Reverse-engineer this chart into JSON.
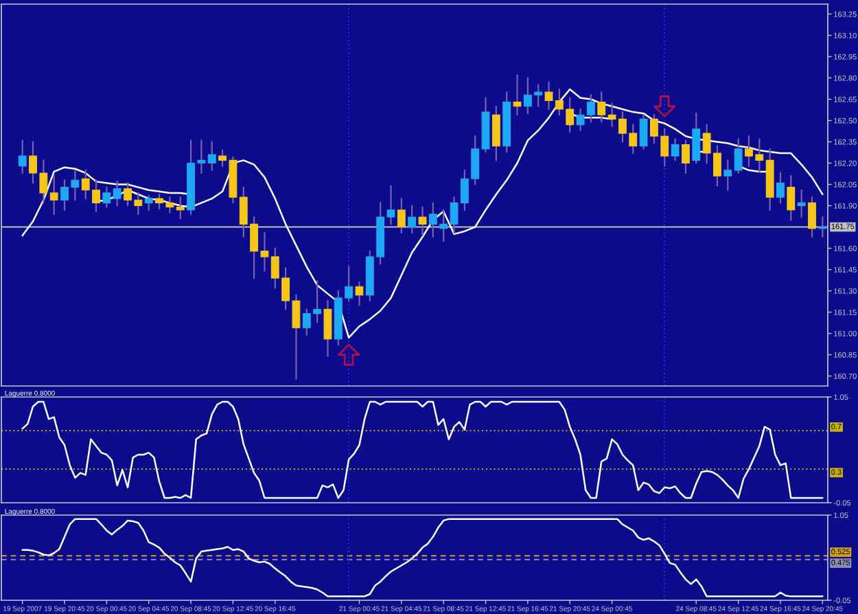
{
  "chart_data": [
    {
      "type": "candlestick",
      "categories": [
        null,
        null,
        null,
        null,
        null,
        null,
        null,
        null,
        null,
        null,
        null,
        null,
        null,
        null,
        null,
        null,
        null,
        null,
        null,
        null,
        null,
        null,
        null,
        null,
        null,
        null,
        null,
        null,
        null,
        null,
        null,
        null,
        null,
        null,
        null,
        null,
        null,
        null,
        null,
        null,
        null,
        null,
        null,
        null,
        null,
        null,
        null,
        null,
        null,
        null,
        null,
        null,
        null,
        null,
        null,
        null,
        null,
        null,
        null,
        null,
        null,
        null,
        null,
        null,
        null,
        null,
        null,
        null,
        null,
        null,
        null,
        null,
        null,
        null,
        null,
        null,
        null
      ],
      "series": [
        {
          "type": "line",
          "color": "#ffffff",
          "values": [
            161.69,
            161.79,
            161.94,
            162.14,
            162.17,
            162.16,
            162.13,
            162.07,
            162.06,
            162.05,
            162.05,
            162.03,
            162.01,
            162.0,
            161.99,
            161.99,
            161.98,
            null,
            null,
            null,
            162.2,
            162.22,
            162.19,
            162.1,
            161.95,
            161.77,
            161.62,
            161.47,
            161.34,
            161.28,
            161.22,
            160.97,
            161.05,
            161.1,
            161.16,
            161.25,
            161.41,
            161.57,
            161.68,
            161.8,
            161.86,
            161.7,
            161.72,
            161.75,
            161.87,
            161.98,
            162.08,
            162.2,
            162.36,
            162.43,
            162.52,
            162.63,
            162.72,
            162.66,
            162.65,
            162.62,
            162.6,
            162.58,
            162.56,
            162.55,
            162.5,
            162.48,
            162.44,
            162.39,
            162.37,
            162.36,
            162.35,
            162.34,
            162.32,
            162.31,
            162.29,
            162.28,
            162.27,
            162.27,
            162.19,
            162.1,
            161.98
          ]
        },
        {
          "type": "line",
          "color": "#ffffff",
          "values": [
            null,
            null,
            null,
            null,
            null,
            null,
            null,
            161.93,
            161.94,
            161.97,
            162.01,
            161.98,
            161.95,
            161.94,
            161.92,
            161.9,
            161.89,
            161.92,
            161.95,
            162.0,
            162.19,
            null,
            null,
            null,
            null,
            null,
            null,
            null,
            null,
            null,
            null,
            null,
            null,
            null,
            null,
            null,
            null,
            null,
            null,
            null,
            null,
            null,
            null,
            null,
            null,
            null,
            null,
            null,
            null,
            null,
            null,
            null,
            162.55,
            162.52,
            162.52,
            162.52,
            162.51,
            null,
            null,
            null,
            null,
            null,
            null,
            null,
            162.28,
            162.28,
            null,
            null,
            162.18,
            162.15,
            162.14,
            162.14,
            null,
            null,
            null,
            null,
            null
          ]
        },
        {
          "type": "candlestick",
          "color": "#7b5fa8",
          "ohlc": [
            [
              162.18,
              162.36,
              162.13,
              162.25
            ],
            [
              162.25,
              162.35,
              162.06,
              162.13
            ],
            [
              162.13,
              162.22,
              161.92,
              161.99
            ],
            [
              161.99,
              162.11,
              161.84,
              161.94
            ],
            [
              161.94,
              162.08,
              161.87,
              162.03
            ],
            [
              162.03,
              162.15,
              161.94,
              162.08
            ],
            [
              162.09,
              162.15,
              161.95,
              162.01
            ],
            [
              162.01,
              162.08,
              161.86,
              161.92
            ],
            [
              161.92,
              162.03,
              161.89,
              161.99
            ],
            [
              161.95,
              162.07,
              161.9,
              162.02
            ],
            [
              162.02,
              162.06,
              161.9,
              161.94
            ],
            [
              161.94,
              161.99,
              161.84,
              161.9
            ],
            [
              161.92,
              161.97,
              161.87,
              161.95
            ],
            [
              161.95,
              161.98,
              161.88,
              161.92
            ],
            [
              161.92,
              161.96,
              161.85,
              161.89
            ],
            [
              161.89,
              161.96,
              161.81,
              161.87
            ],
            [
              161.87,
              162.36,
              161.84,
              162.2
            ],
            [
              162.2,
              162.36,
              162.13,
              162.22
            ],
            [
              162.2,
              162.35,
              162.15,
              162.26
            ],
            [
              162.25,
              162.29,
              162.18,
              162.22
            ],
            [
              162.22,
              162.24,
              161.92,
              161.96
            ],
            [
              161.96,
              162.03,
              161.68,
              161.77
            ],
            [
              161.77,
              161.82,
              161.39,
              161.58
            ],
            [
              161.58,
              161.71,
              161.44,
              161.54
            ],
            [
              161.54,
              161.6,
              161.32,
              161.39
            ],
            [
              161.39,
              161.46,
              161.17,
              161.23
            ],
            [
              161.23,
              161.27,
              160.68,
              161.04
            ],
            [
              161.04,
              161.17,
              160.99,
              161.14
            ],
            [
              161.14,
              161.37,
              161.08,
              161.17
            ],
            [
              161.17,
              161.23,
              160.84,
              160.96
            ],
            [
              160.96,
              161.3,
              160.92,
              161.25
            ],
            [
              161.25,
              161.47,
              161.23,
              161.33
            ],
            [
              161.33,
              161.36,
              161.2,
              161.27
            ],
            [
              161.27,
              161.58,
              161.23,
              161.54
            ],
            [
              161.54,
              161.92,
              161.49,
              161.82
            ],
            [
              161.82,
              162.04,
              161.77,
              161.87
            ],
            [
              161.87,
              161.95,
              161.71,
              161.75
            ],
            [
              161.75,
              161.9,
              161.71,
              161.82
            ],
            [
              161.82,
              161.89,
              161.69,
              161.77
            ],
            [
              161.77,
              161.92,
              161.68,
              161.84
            ],
            [
              161.74,
              161.87,
              161.65,
              161.77
            ],
            [
              161.77,
              161.96,
              161.71,
              161.92
            ],
            [
              161.92,
              162.15,
              161.87,
              162.09
            ],
            [
              162.09,
              162.39,
              162.05,
              162.3
            ],
            [
              162.3,
              162.66,
              162.28,
              162.56
            ],
            [
              162.54,
              162.6,
              162.22,
              162.32
            ],
            [
              162.32,
              162.7,
              162.28,
              162.63
            ],
            [
              162.63,
              162.82,
              162.54,
              162.6
            ],
            [
              162.6,
              162.8,
              162.55,
              162.68
            ],
            [
              162.68,
              162.75,
              162.6,
              162.7
            ],
            [
              162.7,
              162.77,
              162.58,
              162.64
            ],
            [
              162.64,
              162.72,
              162.54,
              162.58
            ],
            [
              162.58,
              162.66,
              162.42,
              162.47
            ],
            [
              162.47,
              162.58,
              162.43,
              162.54
            ],
            [
              162.54,
              162.68,
              162.49,
              162.63
            ],
            [
              162.63,
              162.7,
              162.49,
              162.54
            ],
            [
              162.54,
              162.62,
              162.46,
              162.51
            ],
            [
              162.51,
              162.56,
              162.35,
              162.41
            ],
            [
              162.41,
              162.47,
              162.27,
              162.32
            ],
            [
              162.32,
              162.54,
              162.3,
              162.51
            ],
            [
              162.51,
              162.54,
              162.34,
              162.39
            ],
            [
              162.39,
              162.44,
              162.18,
              162.25
            ],
            [
              162.25,
              162.37,
              162.22,
              162.33
            ],
            [
              162.33,
              162.36,
              162.13,
              162.2
            ],
            [
              162.22,
              162.55,
              162.2,
              162.44
            ],
            [
              162.41,
              162.47,
              162.2,
              162.27
            ],
            [
              162.27,
              162.32,
              162.04,
              162.11
            ],
            [
              162.11,
              162.22,
              162.01,
              162.15
            ],
            [
              162.15,
              162.37,
              162.13,
              162.3
            ],
            [
              162.3,
              162.39,
              162.18,
              162.25
            ],
            [
              162.26,
              162.37,
              162.14,
              162.22
            ],
            [
              162.22,
              162.3,
              161.87,
              161.96
            ],
            [
              161.96,
              162.13,
              161.92,
              162.06
            ],
            [
              162.03,
              162.11,
              161.8,
              161.87
            ],
            [
              161.9,
              162.01,
              161.82,
              161.92
            ],
            [
              161.92,
              161.96,
              161.68,
              161.74
            ],
            [
              161.74,
              161.82,
              161.68,
              161.75
            ]
          ],
          "colors": [
            "#1ea7f2",
            "#f5c518",
            "#f5c518",
            "#f5c518",
            "#1ea7f2",
            "#1ea7f2",
            "#f5c518",
            "#f5c518",
            "#1ea7f2",
            "#1ea7f2",
            "#f5c518",
            "#f5c518",
            "#1ea7f2",
            "#f5c518",
            "#f5c518",
            "#f5c518",
            "#1ea7f2",
            "#1ea7f2",
            "#1ea7f2",
            "#f5c518",
            "#f5c518",
            "#f5c518",
            "#f5c518",
            "#f5c518",
            "#f5c518",
            "#f5c518",
            "#f5c518",
            "#1ea7f2",
            "#1ea7f2",
            "#f5c518",
            "#1ea7f2",
            "#1ea7f2",
            "#f5c518",
            "#1ea7f2",
            "#1ea7f2",
            "#1ea7f2",
            "#f5c518",
            "#1ea7f2",
            "#f5c518",
            "#1ea7f2",
            "#1ea7f2",
            "#1ea7f2",
            "#1ea7f2",
            "#1ea7f2",
            "#1ea7f2",
            "#f5c518",
            "#1ea7f2",
            "#f5c518",
            "#1ea7f2",
            "#1ea7f2",
            "#f5c518",
            "#f5c518",
            "#f5c518",
            "#1ea7f2",
            "#1ea7f2",
            "#f5c518",
            "#f5c518",
            "#f5c518",
            "#f5c518",
            "#1ea7f2",
            "#f5c518",
            "#f5c518",
            "#1ea7f2",
            "#f5c518",
            "#1ea7f2",
            "#f5c518",
            "#f5c518",
            "#1ea7f2",
            "#1ea7f2",
            "#f5c518",
            "#f5c518",
            "#f5c518",
            "#1ea7f2",
            "#f5c518",
            "#1ea7f2",
            "#f5c518",
            "#1ea7f2"
          ]
        },
        {
          "type": "scatter",
          "color": "#b01048",
          "marker": "triangle",
          "values": [
            null,
            null,
            null,
            null,
            null,
            null,
            null,
            null,
            null,
            null,
            null,
            null,
            null,
            null,
            null,
            null,
            null,
            null,
            null,
            null,
            null,
            null,
            null,
            null,
            null,
            null,
            null,
            null,
            null,
            null,
            null,
            160.85,
            null,
            null,
            null,
            null,
            null,
            null,
            null,
            null,
            null,
            null,
            null,
            null,
            null,
            null,
            null,
            null,
            null,
            null,
            null,
            null,
            null,
            null,
            null,
            null,
            null,
            null,
            null,
            null,
            null,
            162.6,
            null,
            null,
            null,
            null,
            null,
            null,
            null,
            null,
            null,
            null,
            null,
            null,
            null,
            null,
            null
          ]
        }
      ],
      "ylim": [
        160.63,
        163.32
      ],
      "yticks": [
        163.25,
        {
          "value": 163.1,
          "label": "163.10"
        },
        162.95,
        {
          "value": 162.8,
          "label": "162.80"
        },
        162.65,
        {
          "value": 162.5,
          "label": "162.50"
        },
        162.35,
        {
          "value": 162.2,
          "label": "162.20"
        },
        162.05,
        {
          "value": 161.9,
          "label": "161.90"
        },
        {
          "value": 161.6,
          "label": "161.60"
        },
        161.45,
        {
          "value": 161.3,
          "label": "161.30"
        },
        161.15,
        {
          "value": 161.0,
          "label": "161.00"
        },
        160.85,
        {
          "value": 160.7,
          "label": "160.70"
        }
      ],
      "ref_lines": [
        {
          "axis": "y",
          "value": 161.75,
          "label": "161.75",
          "color": "#c0c0c0"
        }
      ],
      "tick_labels": "y"
    },
    {
      "type": "line",
      "title": "Laguerre 0.8000",
      "categories": [
        null,
        null,
        null,
        null,
        null,
        null,
        null,
        null,
        null,
        null,
        null,
        null,
        null,
        null,
        null,
        null,
        null,
        null,
        null,
        null,
        null,
        null,
        null,
        null,
        null,
        null,
        null,
        null,
        null,
        null,
        null,
        null,
        null,
        null,
        null,
        null,
        null,
        null,
        null,
        null,
        null,
        null,
        null,
        null,
        null,
        null,
        null,
        null,
        null,
        null,
        null,
        null,
        null,
        null,
        null,
        null,
        null,
        null,
        null,
        null,
        null,
        null,
        null,
        null,
        null,
        null,
        null,
        null,
        null,
        null,
        null,
        null,
        null,
        null,
        null,
        null,
        null,
        null,
        null,
        null,
        null,
        null,
        null,
        null,
        null,
        null,
        null,
        null,
        null,
        null,
        null,
        null,
        null,
        null,
        null,
        null,
        null,
        null,
        null,
        null,
        null,
        null,
        null,
        null,
        null,
        null,
        null,
        null,
        null,
        null,
        null,
        null,
        null,
        null,
        null,
        null,
        null,
        null,
        null,
        null,
        null,
        null,
        null,
        null,
        null,
        null,
        null,
        null,
        null,
        null,
        null,
        null,
        null,
        null,
        null,
        null,
        null,
        null,
        null,
        null,
        null,
        null,
        null,
        null,
        null,
        null,
        null,
        null,
        null,
        null,
        null,
        null,
        null
      ],
      "series": [
        {
          "color": "#ffffff",
          "values": [
            0.72,
            0.77,
            0.95,
            1.0,
            1.0,
            0.82,
            0.84,
            0.63,
            0.55,
            0.34,
            0.21,
            0.26,
            0.24,
            0.61,
            0.54,
            0.47,
            0.45,
            0.39,
            0.13,
            0.29,
            0.11,
            0.42,
            0.45,
            0.45,
            0.47,
            0.42,
            0.17,
            0.0,
            0.0,
            0.01,
            0.0,
            0.03,
            0.0,
            0.61,
            0.65,
            0.67,
            0.87,
            0.97,
            1.0,
            1.0,
            0.95,
            0.82,
            0.56,
            0.41,
            0.26,
            0.18,
            0.0,
            0.0,
            0.0,
            0.0,
            0.0,
            0.0,
            0.0,
            0.0,
            0.0,
            0.0,
            0.0,
            0.13,
            0.11,
            0.14,
            0.0,
            0.08,
            0.4,
            0.46,
            0.55,
            0.82,
            1.0,
            1.0,
            0.97,
            1.0,
            1.0,
            1.0,
            1.0,
            1.0,
            1.0,
            1.0,
            0.95,
            1.0,
            1.0,
            0.76,
            0.82,
            0.61,
            0.74,
            0.79,
            0.71,
            0.97,
            1.0,
            1.0,
            0.95,
            1.0,
            1.0,
            1.0,
            0.97,
            1.0,
            1.0,
            1.0,
            1.0,
            1.0,
            1.0,
            1.0,
            1.0,
            1.0,
            1.0,
            0.92,
            0.74,
            0.61,
            0.45,
            0.08,
            0.0,
            0.0,
            0.38,
            0.41,
            0.61,
            0.56,
            0.45,
            0.39,
            0.34,
            0.08,
            0.16,
            0.14,
            0.07,
            0.05,
            0.11,
            0.1,
            0.12,
            0.05,
            0.0,
            0.0,
            0.15,
            0.27,
            0.28,
            0.27,
            0.24,
            0.19,
            0.13,
            0.08,
            0.0,
            0.2,
            0.3,
            0.42,
            0.54,
            0.74,
            0.71,
            0.45,
            0.34,
            0.36,
            0.0,
            0.0,
            0.0,
            0.0,
            0.0,
            0.0,
            0.0
          ]
        }
      ],
      "ylim": [
        -0.05,
        1.05
      ],
      "yticks": [
        1.05,
        -0.05
      ],
      "ref_lines": [
        {
          "axis": "y",
          "value": 0.7,
          "label": "0.7",
          "color": "#c8b400",
          "line_style": "dotted"
        },
        {
          "axis": "y",
          "value": 0.3,
          "label": "0.3",
          "color": "#c8b400",
          "line_style": "dotted"
        }
      ],
      "tick_labels": "y"
    },
    {
      "type": "line",
      "title": "Laguerre 0.8000",
      "categories": [
        "19 Sep 2007",
        null,
        null,
        null,
        null,
        null,
        null,
        null,
        "19 Sep 20:45",
        null,
        null,
        null,
        null,
        null,
        null,
        null,
        "20 Sep 00:45",
        null,
        null,
        null,
        null,
        null,
        null,
        null,
        "20 Sep 04:45",
        null,
        null,
        null,
        null,
        null,
        null,
        null,
        "20 Sep 08:45",
        null,
        null,
        null,
        null,
        null,
        null,
        null,
        "20 Sep 12:45",
        null,
        null,
        null,
        null,
        null,
        null,
        null,
        "20 Sep 16:45",
        null,
        null,
        null,
        null,
        null,
        null,
        null,
        null,
        null,
        null,
        null,
        null,
        null,
        null,
        null,
        "21 Sep 00:45",
        null,
        null,
        null,
        null,
        null,
        null,
        null,
        "21 Sep 04:45",
        null,
        null,
        null,
        null,
        null,
        null,
        null,
        "21 Sep 08:45",
        null,
        null,
        null,
        null,
        null,
        null,
        null,
        "21 Sep 12:45",
        null,
        null,
        null,
        null,
        null,
        null,
        null,
        "21 Sep 16:45",
        null,
        null,
        null,
        null,
        null,
        null,
        null,
        "21 Sep 20:45",
        null,
        null,
        null,
        null,
        null,
        null,
        null,
        "24 Sep 00:45",
        null,
        null,
        null,
        null,
        null,
        null,
        null,
        null,
        null,
        null,
        null,
        null,
        null,
        null,
        null,
        "24 Sep 08:45",
        null,
        null,
        null,
        null,
        null,
        null,
        null,
        "24 Sep 12:45",
        null,
        null,
        null,
        null,
        null,
        null,
        null,
        "24 Sep 16:45",
        null,
        null,
        null,
        null,
        null,
        null,
        null,
        "24 Sep 20:45"
      ],
      "series": [
        {
          "color": "#ffffff",
          "values": [
            0.6,
            0.6,
            0.59,
            0.57,
            0.54,
            0.53,
            0.56,
            0.61,
            0.77,
            0.93,
            1.0,
            1.0,
            1.0,
            1.0,
            1.0,
            0.93,
            0.85,
            0.8,
            0.86,
            0.91,
            0.98,
            0.97,
            0.95,
            0.85,
            0.7,
            0.67,
            0.63,
            0.55,
            0.5,
            0.44,
            0.4,
            0.3,
            0.19,
            0.49,
            0.58,
            0.59,
            0.6,
            0.61,
            0.62,
            0.64,
            0.6,
            0.61,
            0.58,
            0.49,
            0.46,
            0.44,
            0.45,
            0.42,
            0.36,
            0.31,
            0.26,
            0.19,
            0.14,
            0.13,
            0.12,
            0.11,
            0.09,
            0.05,
            0.0,
            0.0,
            0.0,
            0.0,
            0.0,
            0.0,
            0.0,
            0.0,
            0.03,
            0.14,
            0.19,
            0.26,
            0.32,
            0.36,
            0.4,
            0.44,
            0.49,
            0.55,
            0.63,
            0.68,
            0.77,
            0.89,
            0.98,
            1.0,
            1.0,
            1.0,
            1.0,
            1.0,
            1.0,
            1.0,
            1.0,
            1.0,
            1.0,
            1.0,
            1.0,
            1.0,
            1.0,
            1.0,
            1.0,
            1.0,
            1.0,
            1.0,
            1.0,
            1.0,
            1.0,
            1.0,
            1.0,
            1.0,
            1.0,
            1.0,
            1.0,
            1.0,
            1.0,
            1.0,
            1.0,
            1.0,
            0.93,
            0.89,
            0.85,
            0.76,
            0.73,
            0.75,
            0.71,
            0.66,
            0.55,
            0.43,
            0.41,
            0.31,
            0.22,
            0.16,
            0.22,
            0.13,
            0.0,
            0.0,
            0.0,
            0.0,
            0.0,
            0.0,
            0.0,
            0.0,
            0.0,
            0.0,
            0.0,
            0.0,
            0.0,
            0.0,
            0.05,
            0.01,
            0.0,
            0.0,
            0.0,
            0.0,
            0.0,
            0.0,
            0.0
          ]
        }
      ],
      "ylim": [
        -0.05,
        1.05
      ],
      "yticks": [
        1.05,
        -0.05
      ],
      "ref_lines": [
        {
          "axis": "y",
          "value": 0.525,
          "label": "0.525",
          "color": "#d4a017",
          "line_style": "dashed"
        },
        {
          "axis": "y",
          "value": 0.475,
          "label": "0.475",
          "color": "#8c8cb4",
          "line_style": "dashed"
        }
      ]
    }
  ]
}
